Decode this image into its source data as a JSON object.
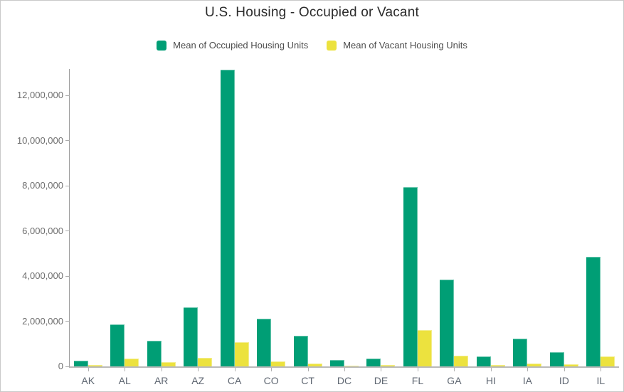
{
  "window": {
    "title": "U.S. Housing - Occupied or Vacant"
  },
  "colors": {
    "occupied": "#009E75",
    "vacant": "#ECE23E",
    "title_text": "#2b2b2b",
    "legend_text": "#4d4d4d",
    "axis_line": "#9e9e9e",
    "tick_text": "#6e6e6e",
    "xlabel_text": "#5f6772"
  },
  "chart_data": {
    "type": "bar",
    "title": "U.S. Housing - Occupied or Vacant",
    "xlabel": "",
    "ylabel": "",
    "grid": false,
    "legend_position": "top",
    "ylim": [
      0,
      13170000
    ],
    "yticks": [
      0,
      2000000,
      4000000,
      6000000,
      8000000,
      10000000,
      12000000
    ],
    "ytick_labels": [
      "0",
      "2,000,000",
      "4,000,000",
      "6,000,000",
      "8,000,000",
      "10,000,000",
      "12,000,000"
    ],
    "categories": [
      "AK",
      "AL",
      "AR",
      "AZ",
      "CA",
      "CO",
      "CT",
      "DC",
      "DE",
      "FL",
      "GA",
      "HI",
      "IA",
      "ID",
      "IL"
    ],
    "series": [
      {
        "name": "Mean of Occupied Housing Units",
        "color": "#009E75",
        "values": [
          260000,
          1870000,
          1130000,
          2610000,
          13130000,
          2110000,
          1360000,
          280000,
          350000,
          7950000,
          3830000,
          440000,
          1240000,
          620000,
          4840000
        ]
      },
      {
        "name": "Mean of Vacant Housing Units",
        "color": "#ECE23E",
        "values": [
          70000,
          360000,
          200000,
          370000,
          1070000,
          210000,
          130000,
          40000,
          50000,
          1600000,
          460000,
          70000,
          120000,
          80000,
          450000
        ]
      }
    ]
  }
}
